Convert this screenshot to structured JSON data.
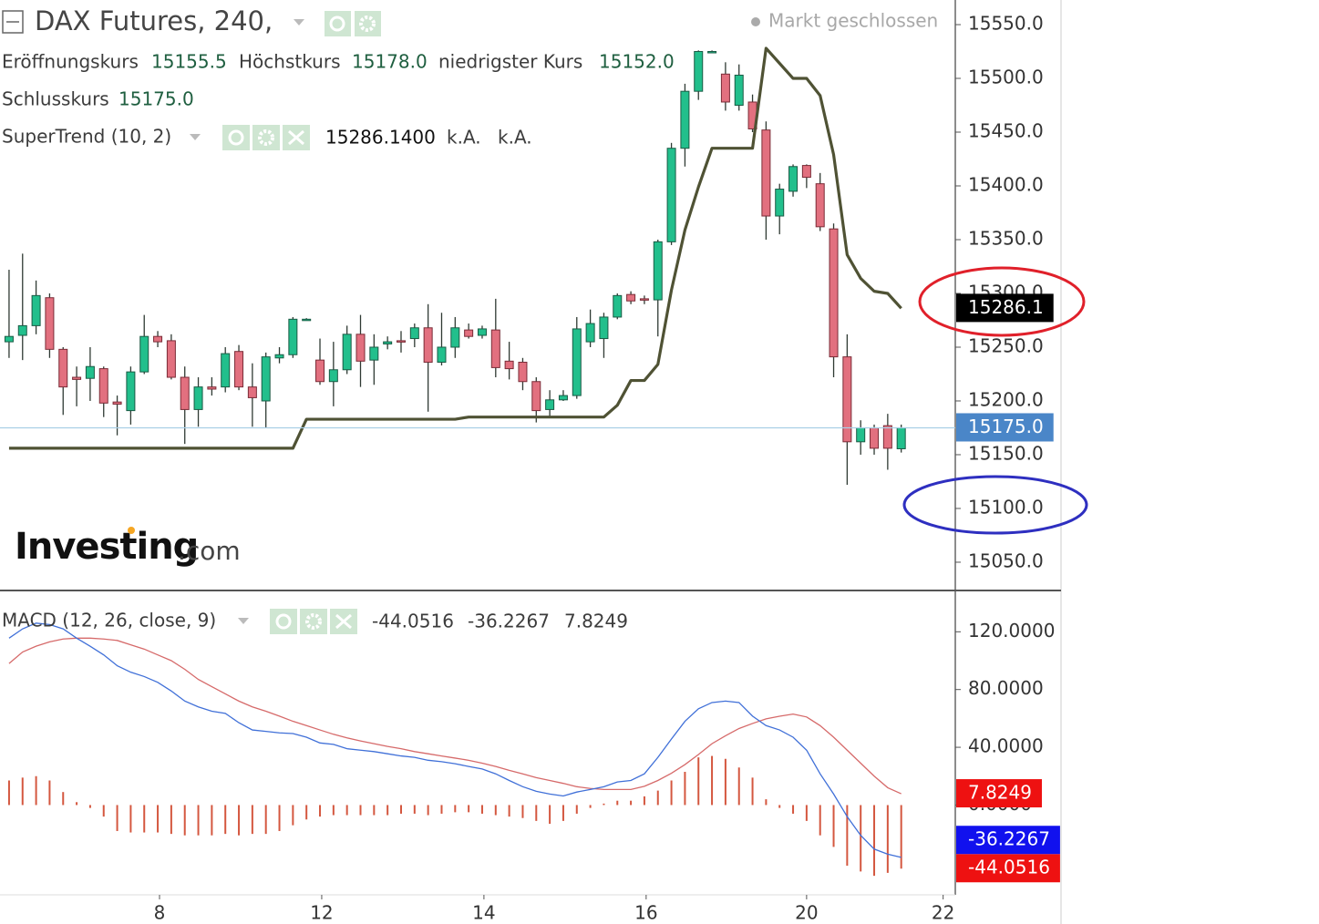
{
  "chart_data": [
    {
      "type": "candlestick",
      "title": "DAX Futures, 240,",
      "status": "Markt geschlossen",
      "legend": [
        {
          "label": "Eröffnungskurs",
          "value": "15155.5"
        },
        {
          "label": "Höchstkurs",
          "value": "15178.0"
        },
        {
          "label": "niedrigster Kurs",
          "value": "15152.0"
        },
        {
          "label": "Schlusskurs",
          "value": "15175.0"
        }
      ],
      "candles": {
        "up_color": "#22bf8c",
        "down_color": "#e2707f",
        "open": [
          15255,
          15261,
          15270,
          15296,
          15248,
          15222,
          15221,
          15230,
          15199,
          15191,
          15227,
          15260,
          15256,
          15222,
          15192,
          15213,
          15213,
          15246,
          15213,
          15200,
          15240,
          15243,
          15276,
          15238,
          15218,
          15229,
          15262,
          15238,
          15253,
          15256,
          15258,
          15268,
          15236,
          15250,
          15266,
          15261,
          15266,
          15237,
          15236,
          15218,
          15192,
          15201,
          15205,
          15255,
          15258,
          15278,
          15299,
          15295,
          15294,
          15348,
          15435,
          15488,
          15525,
          15504,
          15475,
          15478,
          15452,
          15372,
          15395,
          15419,
          15402,
          15360,
          15241,
          15162,
          15175,
          15177,
          15155.5
        ],
        "high": [
          15322,
          15337,
          15312,
          15300,
          15250,
          15232,
          15250,
          15232,
          15205,
          15232,
          15280,
          15265,
          15262,
          15232,
          15222,
          15222,
          15250,
          15252,
          15235,
          15245,
          15250,
          15278,
          15277,
          15258,
          15255,
          15270,
          15280,
          15262,
          15260,
          15265,
          15272,
          15290,
          15282,
          15278,
          15272,
          15270,
          15295,
          15255,
          15240,
          15222,
          15210,
          15210,
          15278,
          15285,
          15282,
          15300,
          15302,
          15298,
          15350,
          15440,
          15495,
          15526,
          15526,
          15515,
          15513,
          15485,
          15460,
          15402,
          15420,
          15420,
          15412,
          15365,
          15262,
          15182,
          15178,
          15188,
          15178
        ],
        "low": [
          15240,
          15238,
          15262,
          15240,
          15187,
          15195,
          15200,
          15185,
          15168,
          15178,
          15225,
          15250,
          15220,
          15160,
          15176,
          15205,
          15208,
          15210,
          15176,
          15175,
          15235,
          15240,
          15275,
          15215,
          15195,
          15225,
          15213,
          15215,
          15248,
          15245,
          15250,
          15190,
          15233,
          15240,
          15258,
          15258,
          15222,
          15220,
          15210,
          15180,
          15185,
          15200,
          15202,
          15250,
          15240,
          15276,
          15290,
          15290,
          15260,
          15345,
          15418,
          15480,
          15524,
          15470,
          15470,
          15450,
          15350,
          15355,
          15390,
          15398,
          15358,
          15222,
          15122,
          15150,
          15150,
          15136,
          15152
        ],
        "close": [
          15260,
          15270,
          15298,
          15248,
          15213,
          15220,
          15232,
          15198,
          15197,
          15227,
          15260,
          15255,
          15222,
          15192,
          15213,
          15211,
          15244,
          15213,
          15203,
          15241,
          15243,
          15276,
          15276,
          15218,
          15229,
          15262,
          15237,
          15250,
          15255,
          15255,
          15268,
          15236,
          15250,
          15268,
          15260,
          15267,
          15231,
          15230,
          15218,
          15191,
          15201,
          15205,
          15267,
          15272,
          15278,
          15298,
          15293,
          15294,
          15348,
          15435,
          15488,
          15525,
          15525,
          15478,
          15503,
          15453,
          15372,
          15397,
          15418,
          15408,
          15362,
          15241,
          15162,
          15175,
          15156,
          15156,
          15175
        ]
      },
      "series": [
        {
          "name": "SuperTrend (10, 2)",
          "color": "#4f5234",
          "legend": [
            "15286.1400",
            "k.A.",
            "k.A."
          ],
          "values": [
            15156,
            15156,
            15156,
            15156,
            15156,
            15156,
            15156,
            15156,
            15156,
            15156,
            15156,
            15156,
            15156,
            15156,
            15156,
            15156,
            15156,
            15156,
            15156,
            15156,
            15156,
            15156,
            15183,
            15183,
            15183,
            15183,
            15183,
            15183,
            15183,
            15183,
            15183,
            15183,
            15183,
            15183,
            15185,
            15185,
            15185,
            15185,
            15185,
            15185,
            15185,
            15185,
            15185,
            15185,
            15185,
            15196,
            15219,
            15219,
            15234,
            15303,
            15359,
            15399,
            15435,
            15435,
            15435,
            15435,
            15528,
            15514,
            15500,
            15500,
            15484,
            15429,
            15336,
            15314,
            15302,
            15300,
            15286.14
          ]
        }
      ],
      "axis_labels": [
        {
          "value": 15286.1,
          "label": "15286.1",
          "color": "#000000"
        },
        {
          "value": 15175,
          "label": "15175.0",
          "color": "#4a86c8"
        }
      ],
      "last_line_color": "#a9cfe6",
      "xlim": [
        -0.67,
        70
      ],
      "ylim": [
        15023.7,
        15572.9
      ],
      "yticks": [
        {
          "value": 15050,
          "label": "15050.0"
        },
        {
          "value": 15100,
          "label": "15100.0"
        },
        {
          "value": 15150,
          "label": "15150.0"
        },
        {
          "value": 15200,
          "label": "15200.0"
        },
        {
          "value": 15250,
          "label": "15250.0"
        },
        {
          "value": 15300,
          "label": "15300.0"
        },
        {
          "value": 15350,
          "label": "15350.0"
        },
        {
          "value": 15400,
          "label": "15400.0"
        },
        {
          "value": 15450,
          "label": "15450.0"
        },
        {
          "value": 15500,
          "label": "15500.0"
        },
        {
          "value": 15550,
          "label": "15550.0"
        }
      ],
      "watermark": {
        "brand": "Investing",
        "suffix": ".com"
      }
    },
    {
      "type": "macd",
      "title": "MACD (12, 26, close, 9)",
      "histogram": {
        "color": "#d4573f",
        "label_color": "#ee1111",
        "values": [
          17,
          19,
          20,
          17,
          9,
          2,
          -2,
          -8,
          -18,
          -19,
          -19,
          -19,
          -20,
          -21,
          -21,
          -21,
          -20,
          -21,
          -20,
          -20,
          -18,
          -14,
          -10,
          -8,
          -7,
          -7,
          -7,
          -7,
          -7,
          -6,
          -6,
          -7,
          -6,
          -5,
          -5,
          -6,
          -7,
          -8,
          -9,
          -11,
          -13,
          -11,
          -6,
          -2,
          1,
          3,
          3,
          6,
          10,
          17,
          23,
          33,
          34,
          32,
          26,
          19,
          4,
          -2,
          -6,
          -11,
          -21,
          -29,
          -42,
          -46,
          -49,
          -47,
          -44.0516
        ]
      },
      "macd": {
        "color": "#4070d8",
        "label_color": "#1111ee",
        "values": [
          115.6,
          122,
          126,
          125,
          122,
          115.6,
          110,
          104,
          96.5,
          92,
          89,
          85,
          79,
          72,
          68,
          65,
          63.5,
          57,
          52,
          51,
          50,
          49.5,
          47,
          43,
          42,
          39,
          38,
          37,
          35.5,
          34,
          33,
          31,
          30,
          28.6,
          26.7,
          25,
          21.6,
          17,
          12.7,
          9.5,
          7.6,
          6.3,
          9,
          10.8,
          12.7,
          16,
          17,
          21.6,
          33,
          45.7,
          58,
          66.7,
          71,
          72,
          71,
          61.6,
          55,
          52,
          47,
          38,
          21.6,
          7.6,
          -8,
          -21,
          -30.5,
          -34,
          -36.2267
        ]
      },
      "signal": {
        "color": "#d66a6a",
        "label_color": "#ee1111",
        "values": [
          98,
          106,
          110,
          113,
          115,
          115.6,
          115.6,
          115,
          114,
          111,
          108,
          104,
          100,
          94,
          87,
          82,
          77,
          72,
          68,
          65,
          61.6,
          58,
          55,
          52,
          49,
          46.5,
          44.4,
          42.5,
          40.6,
          39,
          37,
          35.5,
          34,
          32.5,
          31,
          29,
          26.7,
          24,
          21.6,
          19,
          17,
          15,
          12.7,
          11.5,
          10.8,
          10.8,
          10.8,
          13,
          17,
          22,
          28,
          35,
          42.5,
          48,
          53,
          56.5,
          59.7,
          61.5,
          63,
          61,
          55,
          47,
          38,
          29,
          20,
          12,
          7.8249
        ]
      },
      "xlim": [
        -0.67,
        70
      ],
      "ylim": [
        -62.2,
        148.6
      ],
      "yticks": [
        {
          "value": 0,
          "label": "0.0000"
        },
        {
          "value": 40,
          "label": "40.0000"
        },
        {
          "value": 80,
          "label": "80.0000"
        },
        {
          "value": 120,
          "label": "120.0000"
        }
      ],
      "xticks": [
        {
          "value": 11.13,
          "label": "8"
        },
        {
          "value": 23.13,
          "label": "12"
        },
        {
          "value": 35.13,
          "label": "14"
        },
        {
          "value": 47.13,
          "label": "16"
        },
        {
          "value": 59.0,
          "label": "20"
        },
        {
          "value": 69.1,
          "label": "22"
        }
      ]
    }
  ]
}
